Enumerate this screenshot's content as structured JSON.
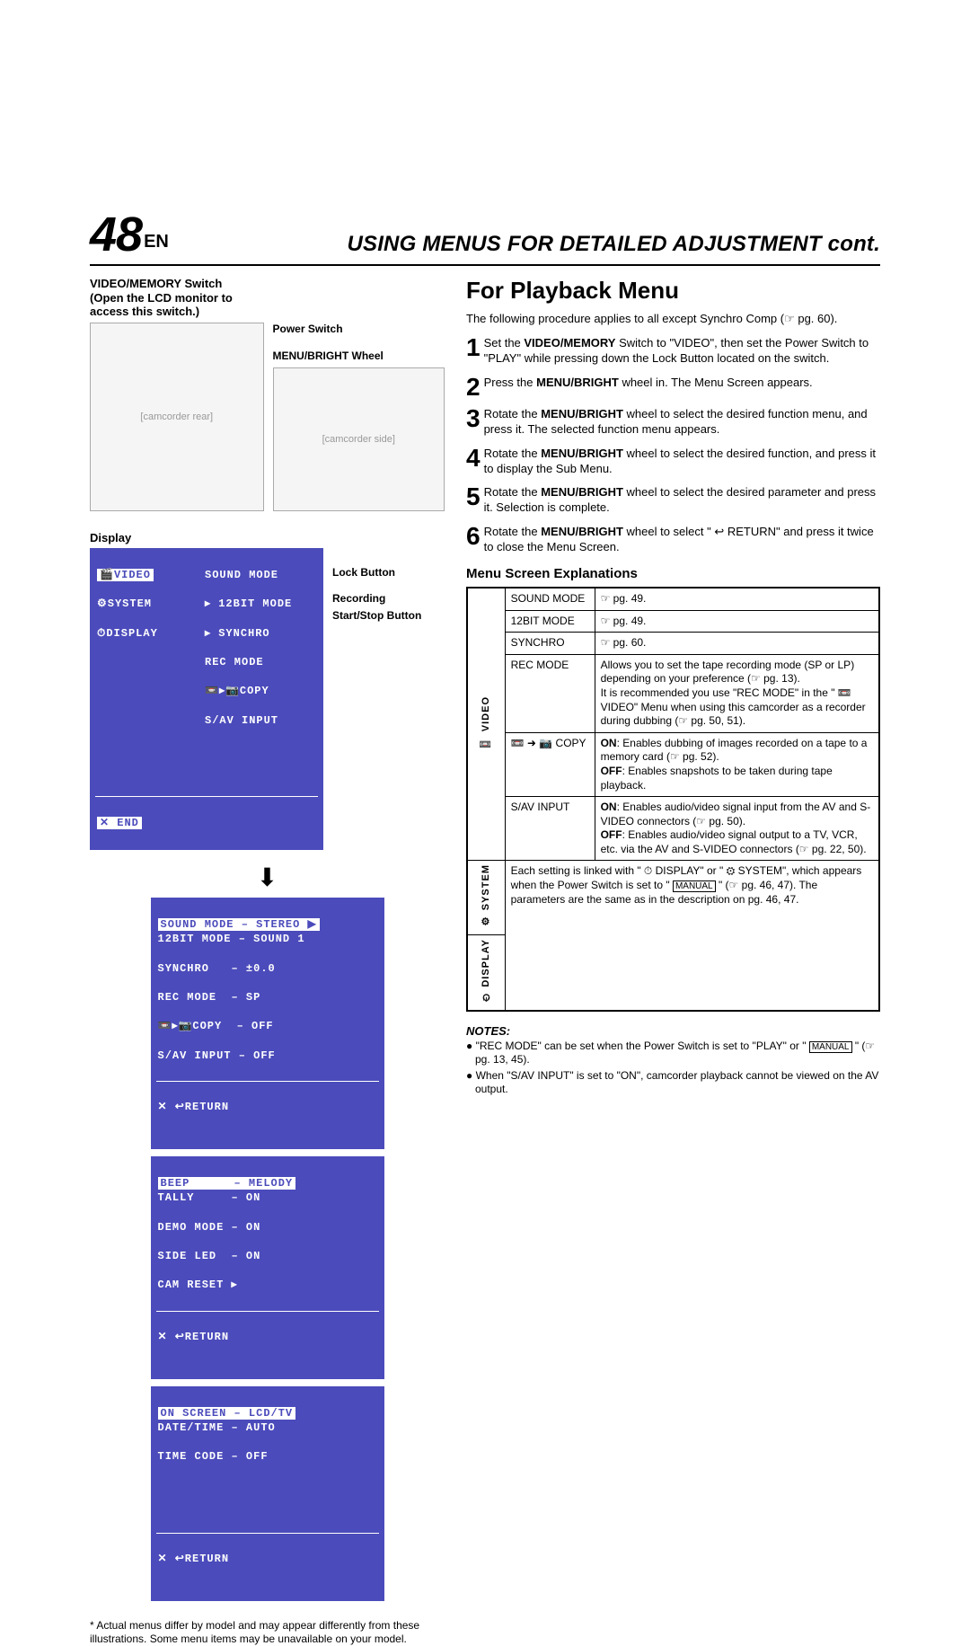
{
  "header": {
    "pageNum": "48",
    "lang": "EN",
    "title": "USING MENUS FOR DETAILED ADJUSTMENT cont."
  },
  "left": {
    "switchLabel1": "VIDEO/MEMORY Switch",
    "switchLabel2": "(Open the LCD monitor to",
    "switchLabel3": "access this switch.)",
    "cap_power": "Power Switch",
    "cap_wheel": "MENU/BRIGHT Wheel",
    "cap_lock": "Lock Button",
    "cap_rec": "Recording",
    "cap_start": "Start/Stop Button",
    "dispLabel": "Display",
    "menu1": {
      "r1l": "🎬VIDEO",
      "r1r": "SOUND MODE",
      "r2l": "⚙SYSTEM",
      "r2r": "▸ 12BIT MODE",
      "r3l": "⏱DISPLAY",
      "r3r": "▸ SYNCHRO",
      "r4r": "REC MODE",
      "r5r": "📼▸📷COPY",
      "r6r": "S/AV INPUT",
      "end": "✕ END"
    },
    "menu2": {
      "r1": "SOUND MODE – STEREO ▶",
      "r2": "12BIT MODE – SOUND 1",
      "r3": "SYNCHRO   – ±0.0",
      "r4": "REC MODE  – SP",
      "r5": "📼▸📷COPY  – OFF",
      "r6": "S/AV INPUT – OFF",
      "ret": "✕ ↩RETURN"
    },
    "menu3": {
      "r1": "BEEP      – MELODY",
      "r2": "TALLY     – ON",
      "r3": "DEMO MODE – ON",
      "r4": "SIDE LED  – ON",
      "r5": "CAM RESET ▸",
      "ret": "✕ ↩RETURN"
    },
    "menu4": {
      "r1": "ON SCREEN – LCD/TV",
      "r2": "DATE/TIME – AUTO",
      "r3": "TIME CODE – OFF",
      "ret": "✕ ↩RETURN"
    },
    "footnote": "* Actual menus differ by model and may appear differently from these illustrations. Some menu items may be unavailable on your model."
  },
  "right": {
    "h2": "For Playback Menu",
    "intro": "The following procedure applies to all except Synchro Comp (☞ pg. 60).",
    "steps": [
      "Set the <b>VIDEO/MEMORY</b> Switch to \"VIDEO\", then set the Power Switch to \"PLAY\" while pressing down the Lock Button located on the switch.",
      "Press the <b>MENU/BRIGHT</b> wheel in. The Menu Screen appears.",
      "Rotate the <b>MENU/BRIGHT</b> wheel to select the desired function menu, and press it. The selected function menu appears.",
      "Rotate the <b>MENU/BRIGHT</b> wheel to select the desired function, and press it to display the Sub Menu.",
      "Rotate the <b>MENU/BRIGHT</b> wheel to select the desired parameter and press it. Selection is complete.",
      "Rotate the <b>MENU/BRIGHT</b> wheel to select \" ↩ RETURN\" and press it twice to close the Menu Screen."
    ],
    "subhead": "Menu Screen Explanations",
    "table": {
      "video_label": "📼 VIDEO",
      "rows": [
        {
          "k": "SOUND MODE",
          "v": "☞ pg. 49."
        },
        {
          "k": "12BIT MODE",
          "v": "☞ pg. 49."
        },
        {
          "k": "SYNCHRO",
          "v": "☞ pg. 60."
        },
        {
          "k": "REC MODE",
          "v": "Allows you to set the tape recording mode (SP or LP) depending on your preference (☞ pg. 13).<br>It is recommended you use \"REC MODE\" in the \" 📼 VIDEO\" Menu when using this camcorder as a recorder during dubbing (☞ pg. 50, 51)."
        },
        {
          "k": "📼 ➜ 📷 COPY",
          "v": "<b>ON</b>: Enables dubbing of images recorded on a tape to a memory card (☞ pg. 52).<br><b>OFF</b>: Enables snapshots to be taken during tape playback."
        },
        {
          "k": "S/AV INPUT",
          "v": "<b>ON</b>: Enables audio/video signal input from the AV and S-VIDEO connectors (☞ pg. 50).<br><b>OFF</b>: Enables audio/video signal output to a TV, VCR, etc. via the AV and S-VIDEO connectors (☞ pg. 22, 50)."
        }
      ],
      "system_label": "⚙ SYSTEM",
      "display_label": "⏱ DISPLAY",
      "sysdisp_text": "Each setting is linked with \" ⏱ DISPLAY\" or \" ⚙ SYSTEM\", which appears when the Power Switch is set to \" <span class='boxed'>MANUAL</span> \" (☞ pg. 46, 47). The parameters are the same as in the description on pg. 46, 47."
    },
    "notes_h": "NOTES:",
    "notes": [
      "\"REC MODE\" can be set when the Power Switch is set to \"PLAY\" or \" <span class='boxed'>MANUAL</span> \" (☞ pg. 13, 45).",
      "When \"S/AV INPUT\" is set to \"ON\", camcorder playback cannot be viewed on the AV output."
    ]
  }
}
